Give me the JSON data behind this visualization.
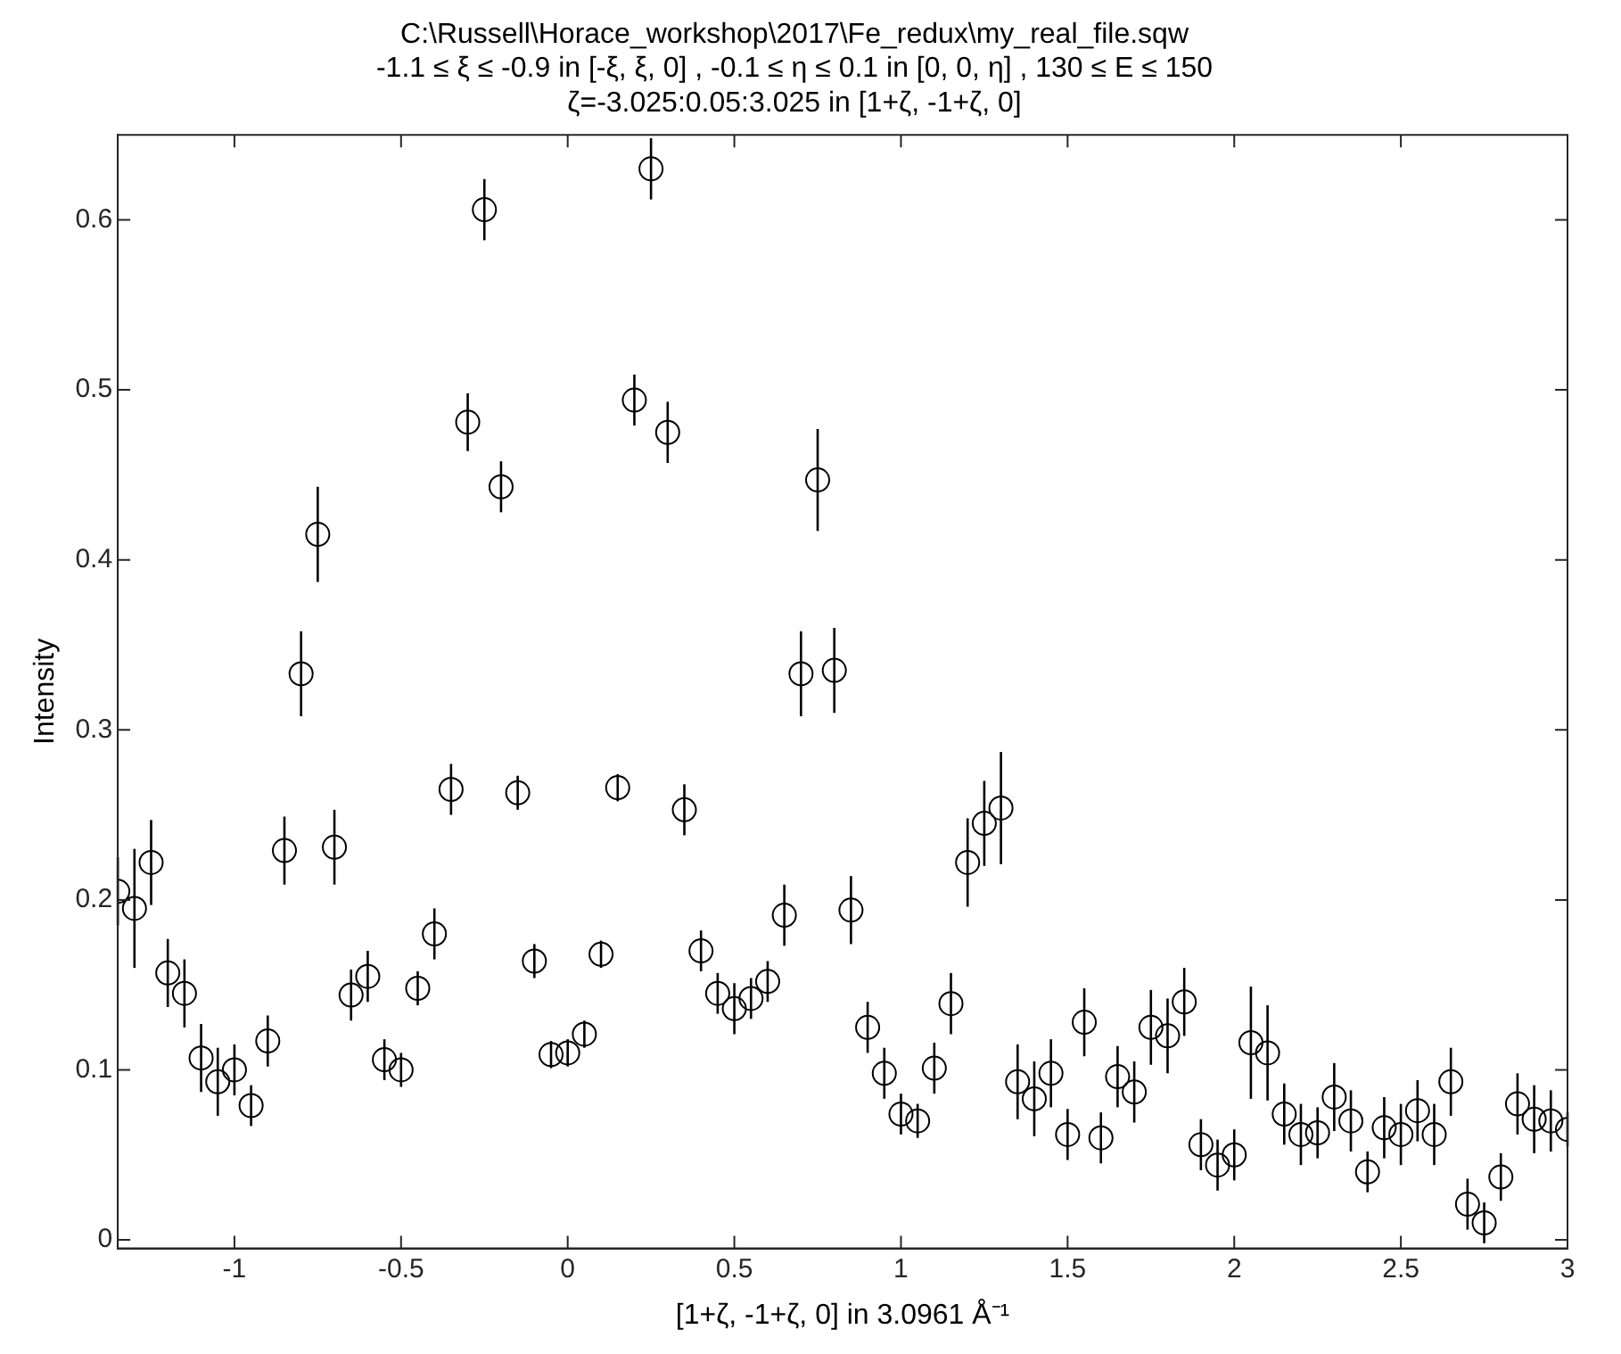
{
  "chart_data": {
    "type": "scatter",
    "title": "C:\\Russell\\Horace_workshop\\2017\\Fe_redux\\my_real_file.sqw",
    "subtitle": "-1.1 ≤ ξ ≤ -0.9 in [-ξ, ξ, 0] , -0.1 ≤ η ≤ 0.1 in [0, 0, η] , 130 ≤ E ≤ 150\nζ=-3.025:0.05:3.025 in [1+ζ, -1+ζ, 0]",
    "xlabel": "[1+ζ, -1+ζ, 0] in 3.0961 Å⁻¹",
    "ylabel": "Intensity",
    "x": [
      -1.35,
      -1.3,
      -1.25,
      -1.2,
      -1.15,
      -1.1,
      -1.05,
      -1,
      -0.95,
      -0.9,
      -0.85,
      -0.8,
      -0.75,
      -0.7,
      -0.65,
      -0.6,
      -0.55,
      -0.5,
      -0.45,
      -0.4,
      -0.35,
      -0.3,
      -0.25,
      -0.2,
      -0.15,
      -0.1,
      -0.05,
      0,
      0.05,
      0.1,
      0.15,
      0.2,
      0.25,
      0.3,
      0.35,
      0.4,
      0.45,
      0.5,
      0.55,
      0.6,
      0.65,
      0.7,
      0.75,
      0.8,
      0.85,
      0.9,
      0.95,
      1,
      1.05,
      1.1,
      1.15,
      1.2,
      1.25,
      1.3,
      1.35,
      1.4,
      1.45,
      1.5,
      1.55,
      1.6,
      1.65,
      1.7,
      1.75,
      1.8,
      1.85,
      1.9,
      1.95,
      2,
      2.05,
      2.1,
      2.15,
      2.2,
      2.25,
      2.3,
      2.35,
      2.4,
      2.45,
      2.5,
      2.55,
      2.6,
      2.65,
      2.7,
      2.75,
      2.8,
      2.85,
      2.9,
      2.95,
      3
    ],
    "series": [
      {
        "color": "#000000",
        "values": [
          0.205,
          0.195,
          0.222,
          0.157,
          0.145,
          0.107,
          0.093,
          0.1,
          0.079,
          0.117,
          0.229,
          0.333,
          0.415,
          0.231,
          0.144,
          0.155,
          0.106,
          0.1,
          0.148,
          0.18,
          0.265,
          0.481,
          0.606,
          0.443,
          0.263,
          0.164,
          0.109,
          0.11,
          0.121,
          0.168,
          0.266,
          0.494,
          0.63,
          0.475,
          0.253,
          0.17,
          0.145,
          0.136,
          0.142,
          0.152,
          0.191,
          0.333,
          0.447,
          0.335,
          0.194,
          0.125,
          0.098,
          0.074,
          0.07,
          0.101,
          0.139,
          0.222,
          0.245,
          0.254,
          0.093,
          0.083,
          0.098,
          0.062,
          0.128,
          0.06,
          0.096,
          0.087,
          0.125,
          0.12,
          0.14,
          0.056,
          0.044,
          0.05,
          0.116,
          0.11,
          0.074,
          0.062,
          0.063,
          0.084,
          0.07,
          0.04,
          0.066,
          0.062,
          0.076,
          0.062,
          0.093,
          0.021,
          0.01,
          0.037,
          0.08,
          0.071,
          0.07,
          0.065
        ],
        "errors": [
          0.02,
          0.035,
          0.025,
          0.02,
          0.02,
          0.02,
          0.02,
          0.015,
          0.012,
          0.015,
          0.02,
          0.025,
          0.028,
          0.022,
          0.015,
          0.015,
          0.012,
          0.01,
          0.01,
          0.015,
          0.015,
          0.017,
          0.018,
          0.015,
          0.01,
          0.01,
          0.008,
          0.008,
          0.008,
          0.008,
          0.008,
          0.015,
          0.018,
          0.018,
          0.015,
          0.012,
          0.012,
          0.015,
          0.012,
          0.012,
          0.018,
          0.025,
          0.03,
          0.025,
          0.02,
          0.015,
          0.015,
          0.012,
          0.01,
          0.015,
          0.018,
          0.026,
          0.025,
          0.033,
          0.022,
          0.022,
          0.02,
          0.015,
          0.02,
          0.015,
          0.018,
          0.018,
          0.022,
          0.022,
          0.02,
          0.015,
          0.015,
          0.015,
          0.033,
          0.028,
          0.018,
          0.018,
          0.015,
          0.02,
          0.018,
          0.012,
          0.018,
          0.018,
          0.018,
          0.018,
          0.02,
          0.015,
          0.012,
          0.014,
          0.018,
          0.02,
          0.018,
          0.01
        ]
      }
    ],
    "xlim": [
      -1.35,
      3
    ],
    "ylim": [
      -0.005,
      0.65
    ],
    "xticks": [
      -1,
      -0.5,
      0,
      0.5,
      1,
      1.5,
      2,
      2.5,
      3
    ],
    "yticks": [
      0,
      0.1,
      0.2,
      0.3,
      0.4,
      0.5,
      0.6
    ],
    "marker": "circle",
    "grid": false,
    "legend": false
  }
}
